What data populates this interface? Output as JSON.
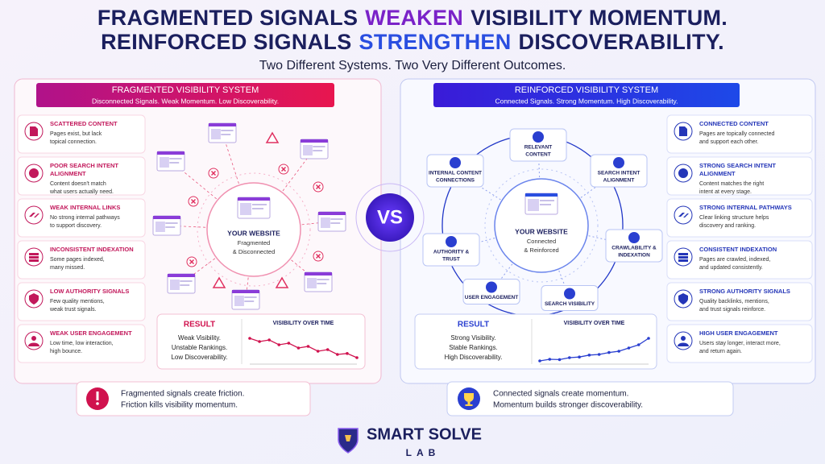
{
  "header": {
    "line1": {
      "before": "FRAGMENTED SIGNALS",
      "highlight": "WEAKEN",
      "after": "VISIBILITY MOMENTUM."
    },
    "line2": {
      "before": "REINFORCED SIGNALS",
      "highlight": "STRENGTHEN",
      "after": "DISCOVERABILITY."
    },
    "subtitle": "Two Different Systems. Two Very Different Outcomes."
  },
  "fragmented": {
    "title": "FRAGMENTED VISIBILITY SYSTEM",
    "subtitle": "Disconnected Signals. Weak Momentum. Low Discoverability.",
    "items": [
      {
        "title": [
          "SCATTERED CONTENT"
        ],
        "text": [
          "Pages exist, but lack",
          "topical connection."
        ]
      },
      {
        "title": [
          "POOR SEARCH INTENT",
          "ALIGNMENT"
        ],
        "text": [
          "Content doesn't match",
          "what users actually need."
        ]
      },
      {
        "title": [
          "WEAK INTERNAL LINKS"
        ],
        "text": [
          "No strong internal pathways",
          "to support discovery."
        ]
      },
      {
        "title": [
          "INCONSISTENT INDEXATION"
        ],
        "text": [
          "Some pages indexed,",
          "many missed."
        ]
      },
      {
        "title": [
          "LOW AUTHORITY SIGNALS"
        ],
        "text": [
          "Few quality mentions,",
          "weak trust signals."
        ]
      },
      {
        "title": [
          "WEAK USER ENGAGEMENT"
        ],
        "text": [
          "Low time, low interaction,",
          "high bounce."
        ]
      }
    ],
    "center": {
      "label": "YOUR WEBSITE",
      "sub": [
        "Fragmented",
        "& Disconnected"
      ]
    },
    "result": {
      "label": "RESULT",
      "lines": [
        "Weak Visibility.",
        "Unstable Rankings.",
        "Low Discoverability."
      ]
    },
    "chart": {
      "title": "VISIBILITY OVER TIME",
      "values": [
        8,
        7,
        7.5,
        6,
        6.5,
        5,
        5.5,
        4,
        4.5,
        3,
        3.3,
        2
      ],
      "ylim": [
        0,
        10
      ]
    },
    "callout": [
      "Fragmented signals create friction.",
      "Friction kills visibility momentum."
    ]
  },
  "vs": "VS",
  "reinforced": {
    "title": "REINFORCED VISIBILITY SYSTEM",
    "subtitle": "Connected Signals. Strong Momentum. High Discoverability.",
    "items": [
      {
        "title": [
          "CONNECTED CONTENT"
        ],
        "text": [
          "Pages are topically connected",
          "and support each other."
        ]
      },
      {
        "title": [
          "STRONG SEARCH INTENT",
          "ALIGNMENT"
        ],
        "text": [
          "Content matches the right",
          "intent at every stage."
        ]
      },
      {
        "title": [
          "STRONG INTERNAL PATHWAYS"
        ],
        "text": [
          "Clear linking structure helps",
          "discovery and ranking."
        ]
      },
      {
        "title": [
          "CONSISTENT INDEXATION"
        ],
        "text": [
          "Pages are crawled, indexed,",
          "and updated consistently."
        ]
      },
      {
        "title": [
          "STRONG AUTHORITY SIGNALS"
        ],
        "text": [
          "Quality backlinks, mentions,",
          "and trust signals reinforce."
        ]
      },
      {
        "title": [
          "HIGH USER ENGAGEMENT"
        ],
        "text": [
          "Users stay longer, interact more,",
          "and return again."
        ]
      }
    ],
    "nodes": [
      [
        "RELEVANT",
        "CONTENT"
      ],
      [
        "SEARCH INTENT",
        "ALIGNMENT"
      ],
      [
        "CRAWLABILITY &",
        "INDEXATION"
      ],
      [
        "SEARCH VISIBILITY"
      ],
      [
        "USER ENGAGEMENT"
      ],
      [
        "AUTHORITY &",
        "TRUST"
      ],
      [
        "INTERNAL CONTENT",
        "CONNECTIONS"
      ]
    ],
    "center": {
      "label": "YOUR WEBSITE",
      "sub": [
        "Connected",
        "& Reinforced"
      ]
    },
    "result": {
      "label": "RESULT",
      "lines": [
        "Strong Visibility.",
        "Stable Rankings.",
        "High Discoverability."
      ]
    },
    "chart": {
      "title": "VISIBILITY OVER TIME",
      "values": [
        1,
        1.5,
        1.4,
        2,
        2.2,
        2.8,
        3,
        3.6,
        4,
        5,
        6,
        8
      ],
      "ylim": [
        0,
        10
      ]
    },
    "callout": [
      "Connected signals create momentum.",
      "Momentum builds stronger discoverability."
    ]
  },
  "logo": {
    "name": "SMART SOLVE",
    "sub": "LAB"
  }
}
